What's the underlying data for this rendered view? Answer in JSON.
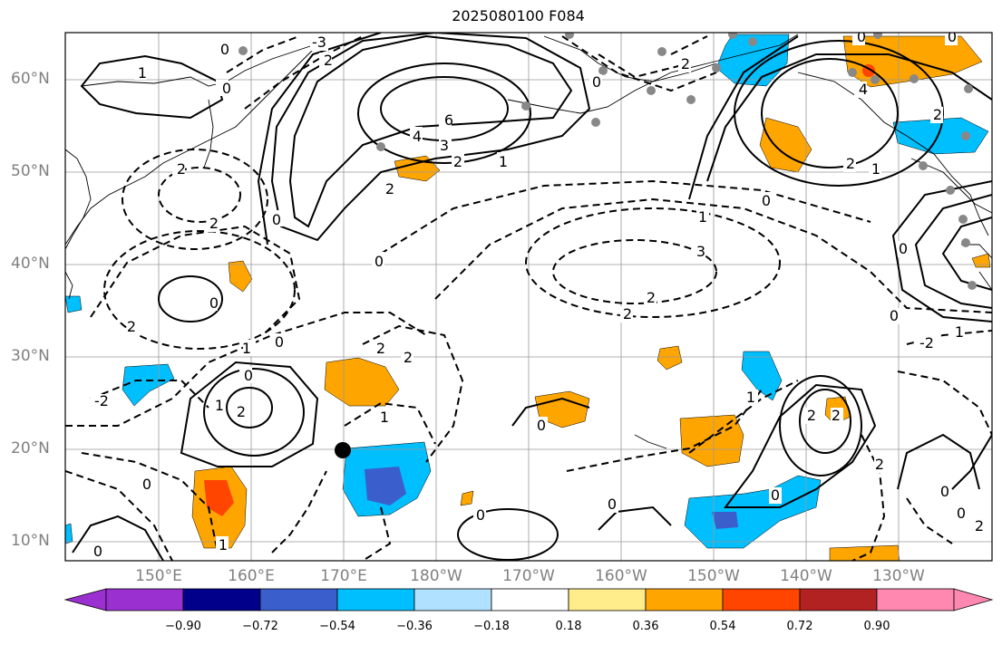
{
  "title": "2025080100 F084",
  "lat_labels": [
    "60°N",
    "50°N",
    "40°N",
    "30°N",
    "20°N",
    "10°N"
  ],
  "lon_labels": [
    "150°E",
    "160°E",
    "170°E",
    "180°W",
    "170°W",
    "160°W",
    "150°W",
    "140°W",
    "130°W"
  ],
  "colorbar": {
    "ticks": [
      "−0.90",
      "−0.72",
      "−0.54",
      "−0.36",
      "−0.18",
      "0.18",
      "0.36",
      "0.54",
      "0.72",
      "0.90"
    ],
    "colors": [
      "#9b30d0",
      "#00008b",
      "#3a5fcd",
      "#00bfff",
      "#b0e2ff",
      "#ffffff",
      "#ffec8b",
      "#ffa500",
      "#ff4500",
      "#b22222",
      "#ff88b0"
    ]
  },
  "contour_labels": {
    "c_m3": "-3",
    "c_m2": "-2",
    "c_m1": "-1",
    "c_0": "0",
    "c_1": "1",
    "c_2": "2",
    "c_3": "3",
    "c_4": "4",
    "c_6": "6"
  }
}
